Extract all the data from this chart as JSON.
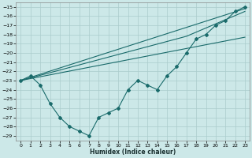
{
  "xlabel": "Humidex (Indice chaleur)",
  "ylabel": "",
  "bg_color": "#cce8e8",
  "grid_color": "#aacccc",
  "line_color": "#1a6b6b",
  "xlim": [
    -0.5,
    23.5
  ],
  "ylim": [
    -29.5,
    -14.5
  ],
  "xticks": [
    0,
    1,
    2,
    3,
    4,
    5,
    6,
    7,
    8,
    9,
    10,
    11,
    12,
    13,
    14,
    15,
    16,
    17,
    18,
    19,
    20,
    21,
    22,
    23
  ],
  "yticks": [
    -15,
    -16,
    -17,
    -18,
    -19,
    -20,
    -21,
    -22,
    -23,
    -24,
    -25,
    -26,
    -27,
    -28,
    -29
  ],
  "hourly_x": [
    0,
    1,
    2,
    3,
    4,
    5,
    6,
    7,
    8,
    9,
    10,
    11,
    12,
    13,
    14,
    15,
    16,
    17,
    18,
    19,
    20,
    21,
    22,
    23
  ],
  "hourly_y": [
    -23.0,
    -22.5,
    -23.5,
    -25.5,
    -27.0,
    -28.0,
    -28.5,
    -29.0,
    -27.0,
    -26.5,
    -26.0,
    -24.0,
    -23.0,
    -23.5,
    -24.0,
    -22.5,
    -21.5,
    -20.0,
    -18.5,
    -18.0,
    -17.0,
    -16.5,
    -15.5,
    -15.0
  ],
  "reg_line1": {
    "x": [
      0,
      23
    ],
    "y": [
      -23.0,
      -15.2
    ]
  },
  "reg_line2": {
    "x": [
      0,
      23
    ],
    "y": [
      -23.0,
      -18.3
    ]
  },
  "reg_line3": {
    "x": [
      0,
      17,
      23
    ],
    "y": [
      -23.0,
      -18.2,
      -15.5
    ]
  }
}
